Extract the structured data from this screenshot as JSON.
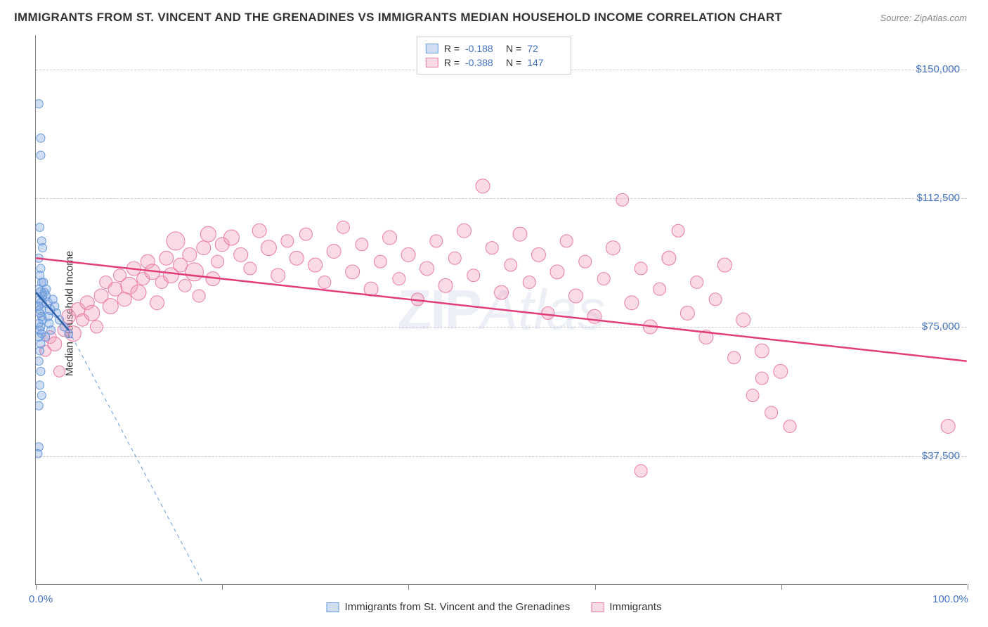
{
  "title": "IMMIGRANTS FROM ST. VINCENT AND THE GRENADINES VS IMMIGRANTS MEDIAN HOUSEHOLD INCOME CORRELATION CHART",
  "source": "Source: ZipAtlas.com",
  "watermark_prefix": "ZIP",
  "watermark_suffix": "Atlas",
  "ylabel": "Median Household Income",
  "chart": {
    "type": "scatter",
    "background_color": "#ffffff",
    "grid_color": "#cccccc",
    "axis_color": "#808080",
    "xlim": [
      0,
      100
    ],
    "ylim": [
      0,
      160000
    ],
    "xticks": [
      0,
      20,
      40,
      60,
      80,
      100
    ],
    "xtick_labels": {
      "first": "0.0%",
      "last": "100.0%"
    },
    "yticks": [
      37500,
      75000,
      112500,
      150000
    ],
    "ytick_labels": [
      "$37,500",
      "$75,000",
      "$112,500",
      "$150,000"
    ],
    "label_fontsize": 15,
    "label_color": "#4472c4",
    "series": [
      {
        "name": "Immigrants from St. Vincent and the Grenadines",
        "color_fill": "rgba(120,160,220,0.35)",
        "color_stroke": "#6699dd",
        "trend_color": "#2c5fa5",
        "trend_dash_color": "#6699dd",
        "R": "-0.188",
        "N": "72",
        "trend": {
          "x1": 0,
          "y1": 85000,
          "x2": 3.5,
          "y2": 74000
        },
        "trend_extrap": {
          "x1": 3.5,
          "y1": 74000,
          "x2": 18,
          "y2": 0
        },
        "points": [
          {
            "x": 0.3,
            "y": 140000,
            "r": 6
          },
          {
            "x": 0.5,
            "y": 130000,
            "r": 6
          },
          {
            "x": 0.5,
            "y": 125000,
            "r": 6
          },
          {
            "x": 0.2,
            "y": 38000,
            "r": 6
          },
          {
            "x": 0.3,
            "y": 40000,
            "r": 6
          },
          {
            "x": 0.4,
            "y": 104000,
            "r": 6
          },
          {
            "x": 0.6,
            "y": 100000,
            "r": 6
          },
          {
            "x": 0.7,
            "y": 98000,
            "r": 6
          },
          {
            "x": 0.3,
            "y": 95000,
            "r": 6
          },
          {
            "x": 0.5,
            "y": 92000,
            "r": 6
          },
          {
            "x": 0.4,
            "y": 90000,
            "r": 6
          },
          {
            "x": 0.6,
            "y": 88000,
            "r": 6
          },
          {
            "x": 0.3,
            "y": 86000,
            "r": 6
          },
          {
            "x": 0.5,
            "y": 85000,
            "r": 7
          },
          {
            "x": 0.7,
            "y": 84000,
            "r": 6
          },
          {
            "x": 0.4,
            "y": 83000,
            "r": 6
          },
          {
            "x": 0.6,
            "y": 82000,
            "r": 7
          },
          {
            "x": 0.3,
            "y": 81000,
            "r": 6
          },
          {
            "x": 0.5,
            "y": 80000,
            "r": 7
          },
          {
            "x": 0.4,
            "y": 79000,
            "r": 6
          },
          {
            "x": 0.6,
            "y": 78000,
            "r": 6
          },
          {
            "x": 0.7,
            "y": 77000,
            "r": 6
          },
          {
            "x": 0.3,
            "y": 76000,
            "r": 6
          },
          {
            "x": 0.5,
            "y": 75000,
            "r": 6
          },
          {
            "x": 0.4,
            "y": 74000,
            "r": 6
          },
          {
            "x": 0.6,
            "y": 73000,
            "r": 6
          },
          {
            "x": 0.3,
            "y": 72000,
            "r": 6
          },
          {
            "x": 0.5,
            "y": 70000,
            "r": 6
          },
          {
            "x": 0.4,
            "y": 68000,
            "r": 6
          },
          {
            "x": 0.3,
            "y": 65000,
            "r": 6
          },
          {
            "x": 0.5,
            "y": 62000,
            "r": 6
          },
          {
            "x": 0.4,
            "y": 58000,
            "r": 6
          },
          {
            "x": 0.6,
            "y": 55000,
            "r": 6
          },
          {
            "x": 0.3,
            "y": 52000,
            "r": 6
          },
          {
            "x": 1.0,
            "y": 84000,
            "r": 7
          },
          {
            "x": 1.2,
            "y": 82000,
            "r": 7
          },
          {
            "x": 1.5,
            "y": 80000,
            "r": 7
          },
          {
            "x": 1.3,
            "y": 78000,
            "r": 6
          },
          {
            "x": 1.8,
            "y": 83000,
            "r": 6
          },
          {
            "x": 2.0,
            "y": 81000,
            "r": 6
          },
          {
            "x": 2.2,
            "y": 79000,
            "r": 6
          },
          {
            "x": 2.5,
            "y": 77000,
            "r": 6
          },
          {
            "x": 1.1,
            "y": 86000,
            "r": 6
          },
          {
            "x": 0.8,
            "y": 88000,
            "r": 6
          },
          {
            "x": 0.9,
            "y": 85000,
            "r": 6
          },
          {
            "x": 1.4,
            "y": 76000,
            "r": 6
          },
          {
            "x": 1.6,
            "y": 74000,
            "r": 6
          },
          {
            "x": 1.0,
            "y": 72000,
            "r": 6
          },
          {
            "x": 3.0,
            "y": 75000,
            "r": 6
          },
          {
            "x": 3.5,
            "y": 73000,
            "r": 6
          }
        ]
      },
      {
        "name": "Immigrants",
        "color_fill": "rgba(240,150,180,0.35)",
        "color_stroke": "#e87ba4",
        "trend_color": "#e23c7a",
        "R": "-0.388",
        "N": "147",
        "trend": {
          "x1": 0,
          "y1": 95000,
          "x2": 100,
          "y2": 65000
        },
        "points": [
          {
            "x": 1,
            "y": 68000,
            "r": 8
          },
          {
            "x": 1.5,
            "y": 72000,
            "r": 9
          },
          {
            "x": 2,
            "y": 70000,
            "r": 10
          },
          {
            "x": 2.5,
            "y": 62000,
            "r": 8
          },
          {
            "x": 3,
            "y": 74000,
            "r": 9
          },
          {
            "x": 3.5,
            "y": 78000,
            "r": 10
          },
          {
            "x": 4,
            "y": 73000,
            "r": 11
          },
          {
            "x": 4.5,
            "y": 80000,
            "r": 10
          },
          {
            "x": 5,
            "y": 77000,
            "r": 9
          },
          {
            "x": 5.5,
            "y": 82000,
            "r": 10
          },
          {
            "x": 6,
            "y": 79000,
            "r": 11
          },
          {
            "x": 6.5,
            "y": 75000,
            "r": 9
          },
          {
            "x": 7,
            "y": 84000,
            "r": 10
          },
          {
            "x": 7.5,
            "y": 88000,
            "r": 9
          },
          {
            "x": 8,
            "y": 81000,
            "r": 11
          },
          {
            "x": 8.5,
            "y": 86000,
            "r": 10
          },
          {
            "x": 9,
            "y": 90000,
            "r": 9
          },
          {
            "x": 9.5,
            "y": 83000,
            "r": 10
          },
          {
            "x": 10,
            "y": 87000,
            "r": 12
          },
          {
            "x": 10.5,
            "y": 92000,
            "r": 10
          },
          {
            "x": 11,
            "y": 85000,
            "r": 11
          },
          {
            "x": 11.5,
            "y": 89000,
            "r": 9
          },
          {
            "x": 12,
            "y": 94000,
            "r": 10
          },
          {
            "x": 12.5,
            "y": 91000,
            "r": 11
          },
          {
            "x": 13,
            "y": 82000,
            "r": 10
          },
          {
            "x": 13.5,
            "y": 88000,
            "r": 9
          },
          {
            "x": 14,
            "y": 95000,
            "r": 10
          },
          {
            "x": 14.5,
            "y": 90000,
            "r": 11
          },
          {
            "x": 15,
            "y": 100000,
            "r": 13
          },
          {
            "x": 15.5,
            "y": 93000,
            "r": 10
          },
          {
            "x": 16,
            "y": 87000,
            "r": 9
          },
          {
            "x": 16.5,
            "y": 96000,
            "r": 10
          },
          {
            "x": 17,
            "y": 91000,
            "r": 13
          },
          {
            "x": 17.5,
            "y": 84000,
            "r": 9
          },
          {
            "x": 18,
            "y": 98000,
            "r": 10
          },
          {
            "x": 18.5,
            "y": 102000,
            "r": 11
          },
          {
            "x": 19,
            "y": 89000,
            "r": 10
          },
          {
            "x": 19.5,
            "y": 94000,
            "r": 9
          },
          {
            "x": 20,
            "y": 99000,
            "r": 10
          },
          {
            "x": 21,
            "y": 101000,
            "r": 11
          },
          {
            "x": 22,
            "y": 96000,
            "r": 10
          },
          {
            "x": 23,
            "y": 92000,
            "r": 9
          },
          {
            "x": 24,
            "y": 103000,
            "r": 10
          },
          {
            "x": 25,
            "y": 98000,
            "r": 11
          },
          {
            "x": 26,
            "y": 90000,
            "r": 10
          },
          {
            "x": 27,
            "y": 100000,
            "r": 9
          },
          {
            "x": 28,
            "y": 95000,
            "r": 10
          },
          {
            "x": 29,
            "y": 102000,
            "r": 9
          },
          {
            "x": 30,
            "y": 93000,
            "r": 10
          },
          {
            "x": 31,
            "y": 88000,
            "r": 9
          },
          {
            "x": 32,
            "y": 97000,
            "r": 10
          },
          {
            "x": 33,
            "y": 104000,
            "r": 9
          },
          {
            "x": 34,
            "y": 91000,
            "r": 10
          },
          {
            "x": 35,
            "y": 99000,
            "r": 9
          },
          {
            "x": 36,
            "y": 86000,
            "r": 10
          },
          {
            "x": 37,
            "y": 94000,
            "r": 9
          },
          {
            "x": 38,
            "y": 101000,
            "r": 10
          },
          {
            "x": 39,
            "y": 89000,
            "r": 9
          },
          {
            "x": 40,
            "y": 96000,
            "r": 10
          },
          {
            "x": 41,
            "y": 83000,
            "r": 9
          },
          {
            "x": 42,
            "y": 92000,
            "r": 10
          },
          {
            "x": 43,
            "y": 100000,
            "r": 9
          },
          {
            "x": 44,
            "y": 87000,
            "r": 10
          },
          {
            "x": 45,
            "y": 95000,
            "r": 9
          },
          {
            "x": 46,
            "y": 103000,
            "r": 10
          },
          {
            "x": 47,
            "y": 90000,
            "r": 9
          },
          {
            "x": 48,
            "y": 116000,
            "r": 10
          },
          {
            "x": 49,
            "y": 98000,
            "r": 9
          },
          {
            "x": 50,
            "y": 85000,
            "r": 10
          },
          {
            "x": 51,
            "y": 93000,
            "r": 9
          },
          {
            "x": 52,
            "y": 102000,
            "r": 10
          },
          {
            "x": 53,
            "y": 88000,
            "r": 9
          },
          {
            "x": 54,
            "y": 96000,
            "r": 10
          },
          {
            "x": 55,
            "y": 79000,
            "r": 9
          },
          {
            "x": 56,
            "y": 91000,
            "r": 10
          },
          {
            "x": 57,
            "y": 100000,
            "r": 9
          },
          {
            "x": 58,
            "y": 84000,
            "r": 10
          },
          {
            "x": 59,
            "y": 94000,
            "r": 9
          },
          {
            "x": 60,
            "y": 78000,
            "r": 10
          },
          {
            "x": 61,
            "y": 89000,
            "r": 9
          },
          {
            "x": 62,
            "y": 98000,
            "r": 10
          },
          {
            "x": 63,
            "y": 112000,
            "r": 9
          },
          {
            "x": 64,
            "y": 82000,
            "r": 10
          },
          {
            "x": 65,
            "y": 92000,
            "r": 9
          },
          {
            "x": 66,
            "y": 75000,
            "r": 10
          },
          {
            "x": 67,
            "y": 86000,
            "r": 9
          },
          {
            "x": 68,
            "y": 95000,
            "r": 10
          },
          {
            "x": 69,
            "y": 103000,
            "r": 9
          },
          {
            "x": 70,
            "y": 79000,
            "r": 10
          },
          {
            "x": 71,
            "y": 88000,
            "r": 9
          },
          {
            "x": 72,
            "y": 72000,
            "r": 10
          },
          {
            "x": 73,
            "y": 83000,
            "r": 9
          },
          {
            "x": 74,
            "y": 93000,
            "r": 10
          },
          {
            "x": 75,
            "y": 66000,
            "r": 9
          },
          {
            "x": 76,
            "y": 77000,
            "r": 10
          },
          {
            "x": 77,
            "y": 55000,
            "r": 9
          },
          {
            "x": 78,
            "y": 68000,
            "r": 10
          },
          {
            "x": 79,
            "y": 50000,
            "r": 9
          },
          {
            "x": 80,
            "y": 62000,
            "r": 10
          },
          {
            "x": 81,
            "y": 46000,
            "r": 9
          },
          {
            "x": 65,
            "y": 33000,
            "r": 9
          },
          {
            "x": 78,
            "y": 60000,
            "r": 9
          },
          {
            "x": 98,
            "y": 46000,
            "r": 10
          }
        ]
      }
    ]
  },
  "legend_top": {
    "R_label": "R =",
    "N_label": "N ="
  }
}
